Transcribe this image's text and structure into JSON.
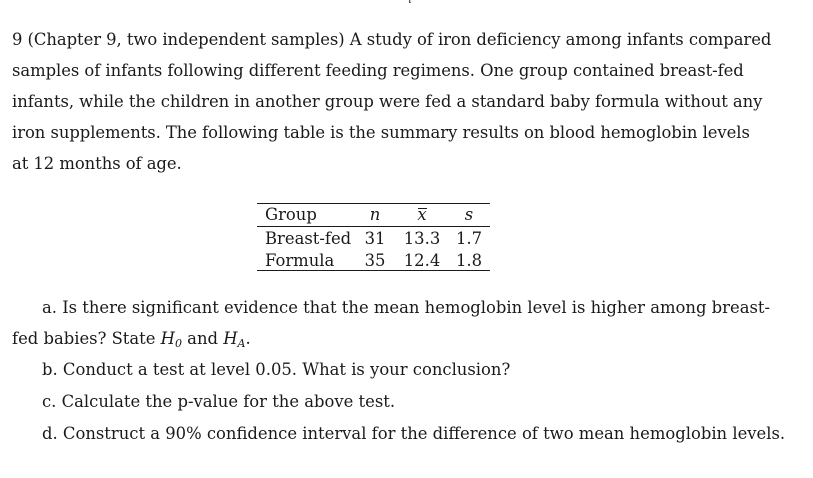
{
  "problem": {
    "lines": [
      "9 (Chapter 9, two independent samples) A study of iron deficiency among infants compared",
      "samples of infants following different feeding regimens.  One group contained breast-fed",
      "infants, while the children in another group were fed a standard baby formula without any",
      "iron supplements.  The following table is the summary results on blood hemoglobin levels",
      "at 12 months of age."
    ]
  },
  "table": {
    "headers": [
      "Group",
      "n",
      "x",
      "s"
    ],
    "rows": [
      [
        "Breast-fed",
        "31",
        "13.3",
        "1.7"
      ],
      [
        "Formula",
        "35",
        "12.4",
        "1.8"
      ]
    ]
  },
  "questions": {
    "a_line1": "a. Is there significant evidence that the mean hemoglobin level is higher among breast-",
    "a_line2_text": "fed babies? State ",
    "a_h": "H",
    "a_h0_sub": "0",
    "a_and": " and ",
    "a_ha_sub": "A",
    "a_period": ".",
    "b": "b. Conduct a test at level 0.05. What is your conclusion?",
    "c": "c. Calculate the p-value for the above test.",
    "d": "d. Construct a 90% confidence interval for the difference of two mean hemoglobin levels."
  }
}
